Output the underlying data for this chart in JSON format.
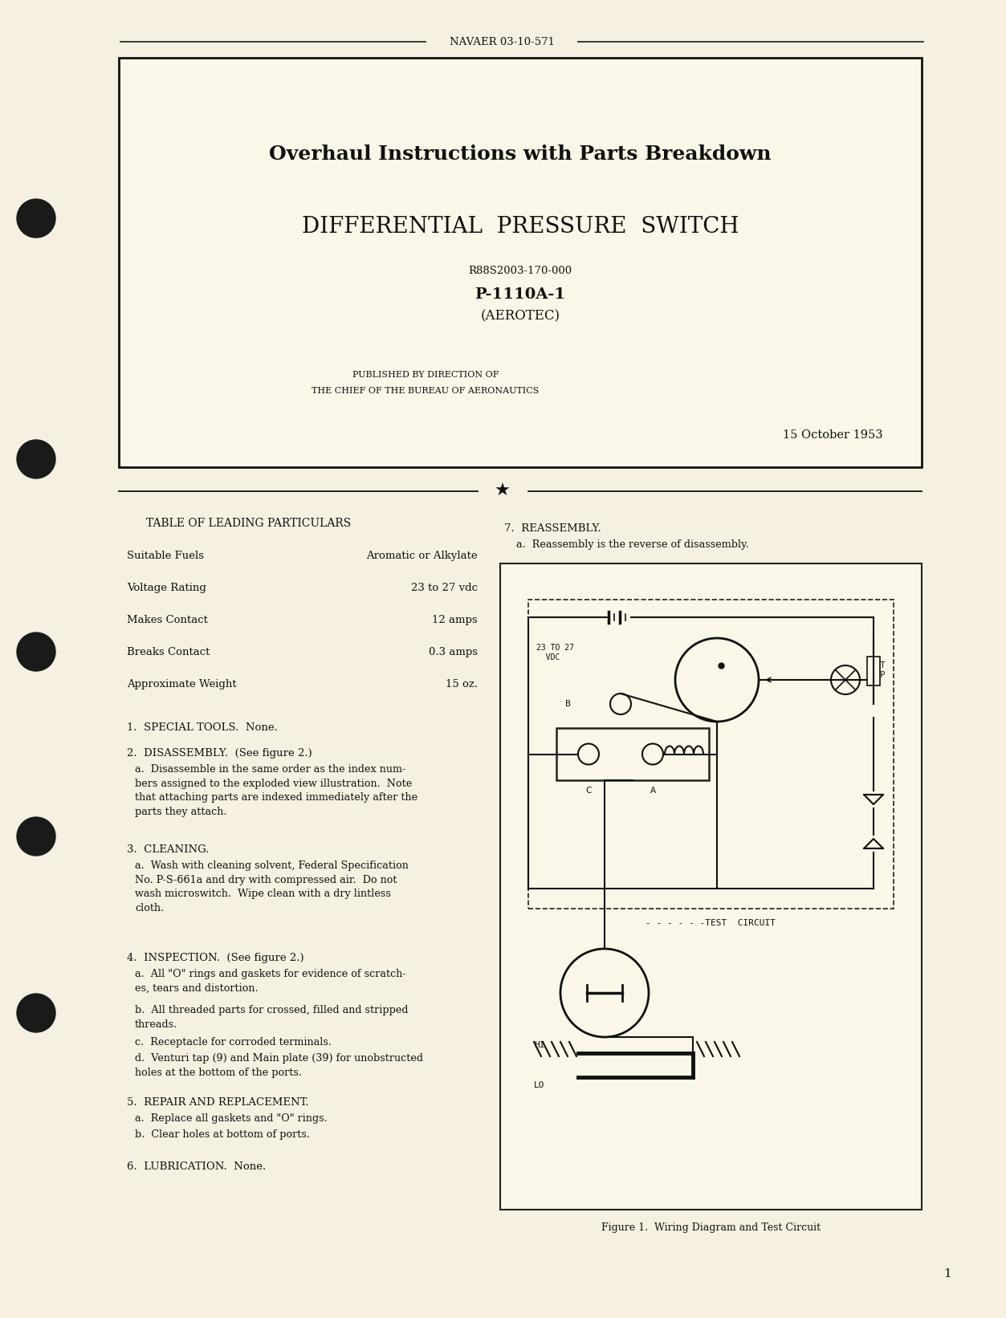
{
  "page_bg": "#f5f0e0",
  "header_text": "NAVAER 03-10-571",
  "title1": "Overhaul Instructions with Parts Breakdown",
  "title2": "DIFFERENTIAL  PRESSURE  SWITCH",
  "subtitle1": "R88S2003-170-000",
  "subtitle2": "P-1110A-1",
  "subtitle3": "(AEROTEC)",
  "pub_line1": "PUBLISHED BY DIRECTION OF",
  "pub_line2": "THE CHIEF OF THE BUREAU OF AERONAUTICS",
  "date": "15 October 1953",
  "table_title": "TABLE OF LEADING PARTICULARS",
  "table_items": [
    [
      "Suitable Fuels",
      "Aromatic or Alkylate"
    ],
    [
      "Voltage Rating",
      "23 to 27 vdc"
    ],
    [
      "Makes Contact",
      "12 amps"
    ],
    [
      "Breaks Contact",
      "0.3 amps"
    ],
    [
      "Approximate Weight",
      "15 oz."
    ]
  ],
  "section1": "1.  SPECIAL TOOLS.  None.",
  "section2_head": "2.  DISASSEMBLY.  (See figure 2.)",
  "section2_a": "a.  Disassemble in the same order as the index num-\nbers assigned to the exploded view illustration.  Note\nthat attaching parts are indexed immediately after the\nparts they attach.",
  "section3_head": "3.  CLEANING.",
  "section3_a": "a.  Wash with cleaning solvent, Federal Specification\nNo. P-S-661a and dry with compressed air.  Do not\nwash microswitch.  Wipe clean with a dry lintless\ncloth.",
  "section4_head": "4.  INSPECTION.  (See figure 2.)",
  "section4_a": "a.  All \"O\" rings and gaskets for evidence of scratch-\nes, tears and distortion.",
  "section4_b": "b.  All threaded parts for crossed, filled and stripped\nthreads.",
  "section4_c": "c.  Receptacle for corroded terminals.",
  "section4_d": "d.  Venturi tap (9) and Main plate (39) for unobstructed\nholes at the bottom of the ports.",
  "section5_head": "5.  REPAIR AND REPLACEMENT.",
  "section5_a": "a.  Replace all gaskets and \"O\" rings.",
  "section5_b": "b.  Clear holes at bottom of ports.",
  "section6": "6.  LUBRICATION.  None.",
  "section7_head": "7.  REASSEMBLY.",
  "section7_a": "a.  Reassembly is the reverse of disassembly.",
  "fig_caption": "Figure 1.  Wiring Diagram and Test Circuit",
  "page_number": "1"
}
